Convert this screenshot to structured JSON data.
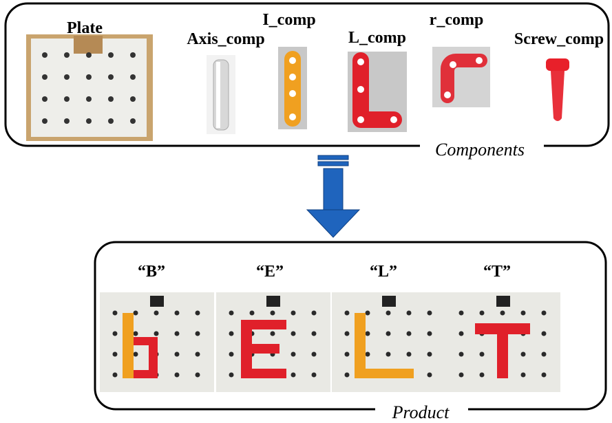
{
  "components": {
    "caption": "Components",
    "items": [
      {
        "label": "Plate"
      },
      {
        "label": "Axis_comp"
      },
      {
        "label": "I_comp"
      },
      {
        "label": "L_comp"
      },
      {
        "label": "r_comp"
      },
      {
        "label": "Screw_comp"
      }
    ]
  },
  "product": {
    "caption": "Product",
    "items": [
      {
        "label": "“B”"
      },
      {
        "label": "“E”"
      },
      {
        "label": "“L”"
      },
      {
        "label": "“T”"
      }
    ]
  }
}
